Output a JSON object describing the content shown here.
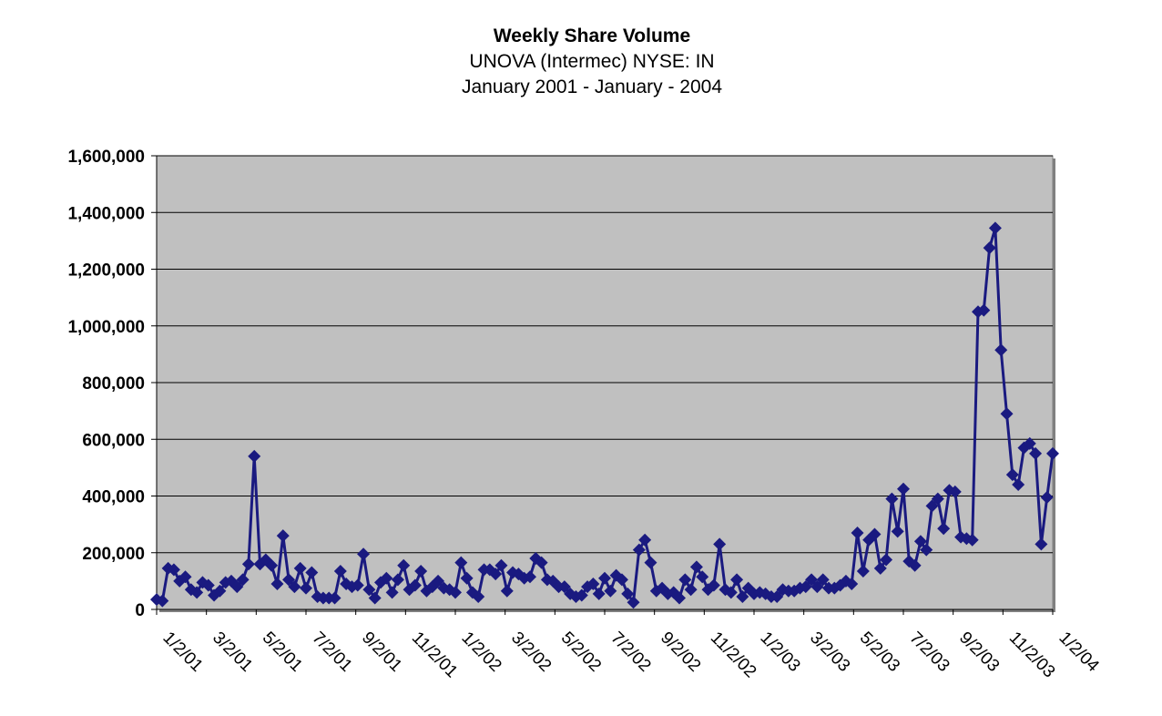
{
  "chart_data": {
    "type": "line",
    "title": "Weekly Share Volume",
    "subtitle": "UNOVA (Intermec) NYSE: IN",
    "subtitle2": "January 2001 - January - 2004",
    "xlabel": "",
    "ylabel": "",
    "ylim": [
      0,
      1600000
    ],
    "y_ticks": [
      0,
      200000,
      400000,
      600000,
      800000,
      1000000,
      1200000,
      1400000,
      1600000
    ],
    "y_tick_labels": [
      "0",
      "200,000",
      "400,000",
      "600,000",
      "800,000",
      "1,000,000",
      "1,200,000",
      "1,400,000",
      "1,600,000"
    ],
    "x_tick_labels": [
      "1/2/01",
      "3/2/01",
      "5/2/01",
      "7/2/01",
      "9/2/01",
      "11/2/01",
      "1/2/02",
      "3/2/02",
      "5/2/02",
      "7/2/02",
      "9/2/02",
      "11/2/02",
      "1/2/03",
      "3/2/03",
      "5/2/03",
      "7/2/03",
      "9/2/03",
      "11/2/03",
      "1/2/04"
    ],
    "grid": "horizontal",
    "legend": "none",
    "colors": {
      "line": "#1a1a80",
      "marker": "#1a1a80",
      "plot_bg": "#c0c0c0",
      "grid": "#000000"
    },
    "series": [
      {
        "values": [
          35000,
          30000,
          145000,
          140000,
          100000,
          115000,
          70000,
          60000,
          95000,
          85000,
          50000,
          65000,
          95000,
          100000,
          80000,
          105000,
          160000,
          540000,
          160000,
          175000,
          155000,
          90000,
          260000,
          105000,
          80000,
          145000,
          75000,
          130000,
          45000,
          40000,
          40000,
          40000,
          135000,
          90000,
          80000,
          85000,
          195000,
          70000,
          40000,
          95000,
          110000,
          60000,
          105000,
          155000,
          70000,
          85000,
          135000,
          65000,
          80000,
          100000,
          75000,
          70000,
          60000,
          165000,
          110000,
          60000,
          45000,
          140000,
          140000,
          125000,
          155000,
          65000,
          130000,
          125000,
          110000,
          115000,
          180000,
          165000,
          105000,
          100000,
          80000,
          80000,
          55000,
          45000,
          50000,
          80000,
          90000,
          55000,
          110000,
          65000,
          120000,
          105000,
          55000,
          25000,
          210000,
          245000,
          165000,
          65000,
          75000,
          55000,
          60000,
          40000,
          105000,
          70000,
          150000,
          115000,
          70000,
          85000,
          230000,
          70000,
          60000,
          105000,
          45000,
          75000,
          55000,
          60000,
          55000,
          45000,
          45000,
          70000,
          65000,
          65000,
          75000,
          80000,
          105000,
          80000,
          105000,
          75000,
          75000,
          85000,
          100000,
          90000,
          270000,
          135000,
          245000,
          265000,
          145000,
          175000,
          390000,
          275000,
          425000,
          170000,
          155000,
          240000,
          210000,
          365000,
          390000,
          285000,
          420000,
          415000,
          255000,
          250000,
          245000,
          1050000,
          1055000,
          1275000,
          1345000,
          915000,
          690000,
          475000,
          440000,
          570000,
          585000,
          550000,
          230000,
          395000,
          550000
        ]
      }
    ]
  }
}
